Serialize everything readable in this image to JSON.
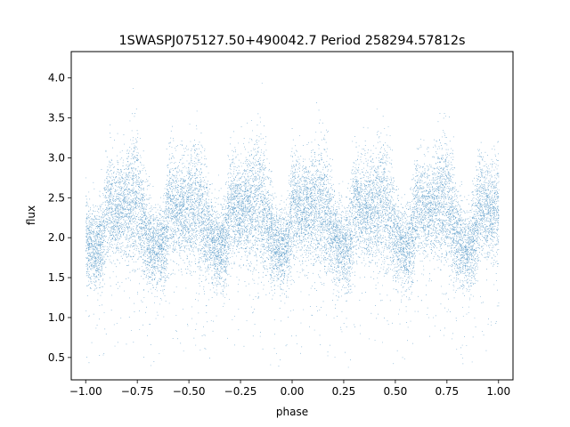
{
  "chart_data": {
    "type": "scatter",
    "title": "1SWASPJ075127.50+490042.7 Period 258294.57812s",
    "xlabel": "phase",
    "ylabel": "flux",
    "xlim": [
      -1.07,
      1.07
    ],
    "ylim": [
      0.22,
      4.33
    ],
    "xticks": [
      -1.0,
      -0.75,
      -0.5,
      -0.25,
      0.0,
      0.25,
      0.5,
      0.75,
      1.0
    ],
    "xtick_labels": [
      "−1.00",
      "−0.75",
      "−0.50",
      "−0.25",
      "0.00",
      "0.25",
      "0.50",
      "0.75",
      "1.00"
    ],
    "yticks": [
      0.5,
      1.0,
      1.5,
      2.0,
      2.5,
      3.0,
      3.5,
      4.0
    ],
    "ytick_labels": [
      "0.5",
      "1.0",
      "1.5",
      "2.0",
      "2.5",
      "3.0",
      "3.5",
      "4.0"
    ],
    "grid": false,
    "marker_color": "#1f77b4",
    "phase_profile": {
      "phase": [
        0.0,
        0.03,
        0.06,
        0.1,
        0.14,
        0.18,
        0.2,
        0.22,
        0.25,
        0.28,
        0.3
      ],
      "center_flux": [
        2.45,
        2.35,
        2.35,
        2.4,
        2.45,
        2.2,
        2.0,
        1.9,
        1.85,
        1.95,
        2.4
      ],
      "spread": [
        0.35,
        0.3,
        0.3,
        0.35,
        0.45,
        0.35,
        0.3,
        0.25,
        0.25,
        0.3,
        0.35
      ]
    },
    "phase_range": [
      -1.0,
      1.0
    ],
    "points_shown": 18000
  }
}
